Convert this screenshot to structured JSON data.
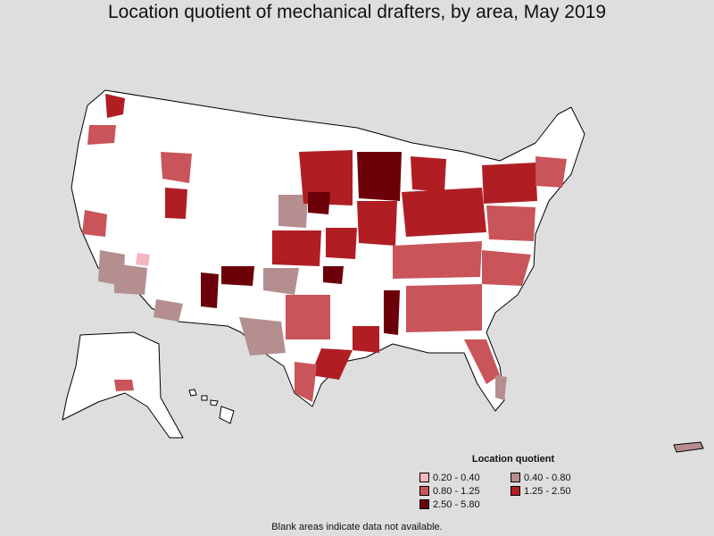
{
  "title": "Location quotient of mechanical drafters, by area, May 2019",
  "legend": {
    "title": "Location quotient",
    "items": [
      {
        "label": "0.20 - 0.40",
        "color": "#f4b6c0"
      },
      {
        "label": "0.40 - 0.80",
        "color": "#b58e90"
      },
      {
        "label": "0.80 - 1.25",
        "color": "#c9545a"
      },
      {
        "label": "1.25 - 2.50",
        "color": "#b01e24"
      },
      {
        "label": "2.50 - 5.80",
        "color": "#6b0008"
      }
    ]
  },
  "note": "Blank areas indicate data not available.",
  "colors": {
    "background": "#dedede",
    "no_data": "#ffffff",
    "border": "#000000"
  }
}
